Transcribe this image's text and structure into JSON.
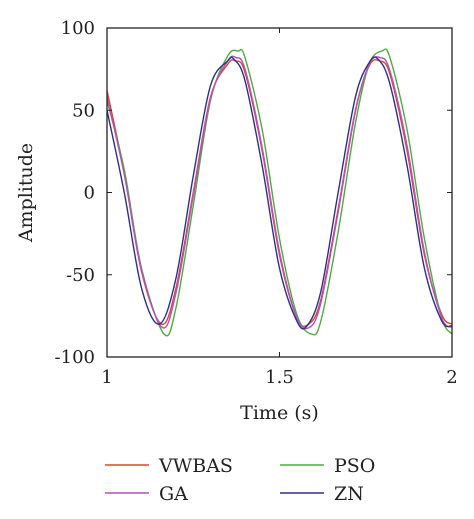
{
  "chart_data": {
    "type": "line",
    "title": "",
    "xlabel": "Time (s)",
    "ylabel": "Amplitude",
    "xlim": [
      1,
      2
    ],
    "ylim": [
      -100,
      100
    ],
    "xticks": [
      1,
      1.5,
      2
    ],
    "xtick_labels": [
      "1",
      "1.5",
      "2"
    ],
    "yticks": [
      100,
      50,
      0,
      -50,
      -100
    ],
    "ytick_labels": [
      "100",
      "50",
      "0",
      "-50",
      "-100"
    ],
    "grid": false,
    "legend_position": "bottom",
    "series": [
      {
        "name": "VWBAS",
        "color": "#d9482b",
        "x": [
          1.0,
          1.05,
          1.1,
          1.158,
          1.2,
          1.25,
          1.3,
          1.35,
          1.372,
          1.4,
          1.45,
          1.5,
          1.55,
          1.585,
          1.62,
          1.67,
          1.72,
          1.76,
          1.79,
          1.82,
          1.87,
          1.92,
          1.97,
          2.0
        ],
        "y": [
          62,
          12,
          -48,
          -80,
          -58,
          0,
          58,
          78,
          80,
          73,
          25,
          -38,
          -76,
          -80,
          -65,
          -10,
          50,
          77,
          80,
          72,
          25,
          -38,
          -74,
          -80
        ]
      },
      {
        "name": "PSO",
        "color": "#4dac3e",
        "x": [
          1.0,
          1.05,
          1.1,
          1.165,
          1.2,
          1.25,
          1.3,
          1.35,
          1.38,
          1.4,
          1.45,
          1.5,
          1.55,
          1.592,
          1.62,
          1.67,
          1.72,
          1.76,
          1.797,
          1.82,
          1.87,
          1.92,
          1.97,
          2.0
        ],
        "y": [
          56,
          14,
          -46,
          -86,
          -70,
          -8,
          56,
          83,
          86,
          82,
          38,
          -28,
          -74,
          -86,
          -78,
          -24,
          42,
          78,
          86,
          82,
          38,
          -28,
          -76,
          -86
        ]
      },
      {
        "name": "GA",
        "color": "#b74fbf",
        "x": [
          1.0,
          1.05,
          1.1,
          1.16,
          1.2,
          1.25,
          1.3,
          1.35,
          1.374,
          1.4,
          1.45,
          1.5,
          1.55,
          1.587,
          1.62,
          1.67,
          1.72,
          1.76,
          1.792,
          1.82,
          1.87,
          1.92,
          1.97,
          2.0
        ],
        "y": [
          58,
          11,
          -47,
          -82,
          -61,
          -2,
          57,
          80,
          82,
          75,
          27,
          -36,
          -76,
          -82,
          -67,
          -12,
          49,
          78,
          82,
          74,
          28,
          -36,
          -76,
          -82
        ]
      },
      {
        "name": "ZN",
        "color": "#2b2f8e",
        "x": [
          1.0,
          1.05,
          1.1,
          1.152,
          1.2,
          1.25,
          1.3,
          1.35,
          1.368,
          1.4,
          1.45,
          1.5,
          1.55,
          1.58,
          1.62,
          1.67,
          1.72,
          1.76,
          1.786,
          1.82,
          1.87,
          1.92,
          1.97,
          2.0
        ],
        "y": [
          50,
          0,
          -58,
          -80,
          -52,
          10,
          65,
          80,
          81,
          68,
          16,
          -46,
          -78,
          -81,
          -60,
          0,
          58,
          79,
          81,
          66,
          16,
          -46,
          -78,
          -81
        ]
      }
    ]
  }
}
